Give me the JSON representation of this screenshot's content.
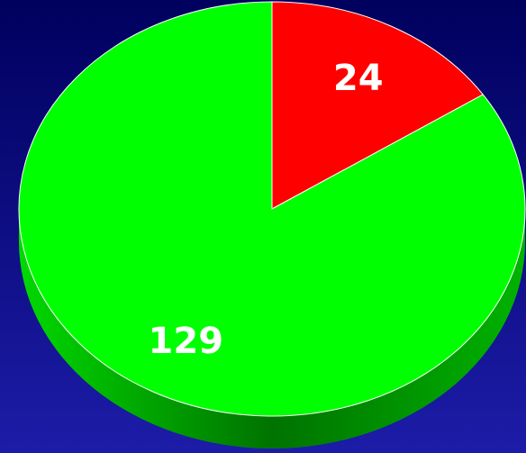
{
  "chart_data": {
    "type": "pie",
    "categories": [
      null,
      null
    ],
    "values": [
      24,
      129
    ],
    "colors": [
      "#ff0000",
      "#00ff00"
    ],
    "start_angle": 0,
    "direction": "clockwise",
    "three_d": true
  }
}
